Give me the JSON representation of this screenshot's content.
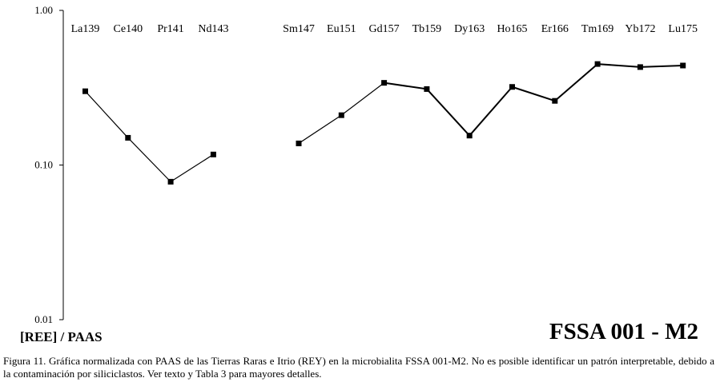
{
  "chart_data": {
    "type": "line",
    "title": "FSSA 001 - M2",
    "ylabel": "[REE] / PAAS",
    "xlabel": "",
    "y_scale": "log",
    "ylim": [
      0.01,
      1.0
    ],
    "y_ticks": [
      "1.00",
      "0.10",
      "0.01"
    ],
    "grid": false,
    "categories": [
      "La139",
      "Ce140",
      "Pr141",
      "Nd143",
      "",
      "Sm147",
      "Eu151",
      "Gd157",
      "Tb159",
      "Dy163",
      "Ho165",
      "Er166",
      "Tm169",
      "Yb172",
      "Lu175"
    ],
    "series": [
      {
        "values": [
          0.3,
          0.15,
          0.078,
          0.117,
          null,
          0.138,
          0.21,
          0.34,
          0.31,
          0.155,
          0.32,
          0.26,
          0.45,
          0.43,
          0.44
        ]
      }
    ]
  },
  "caption": "Figura 11. Gráfica normalizada con PAAS de las Tierras Raras e Itrio (REY) en la microbialita FSSA 001-M2. No es posible identificar un patrón interpretable, debido a la contaminación por siliciclastos. Ver texto y Tabla 3 para mayores detalles."
}
